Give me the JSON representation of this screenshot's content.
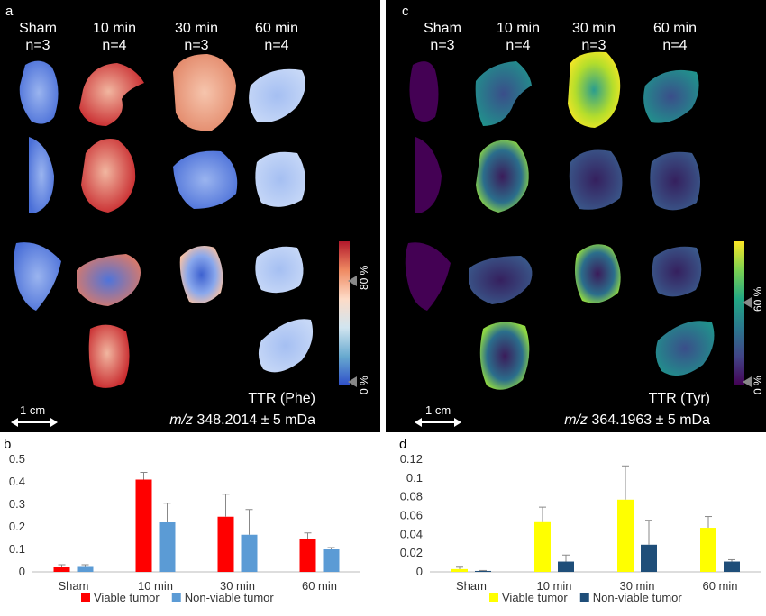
{
  "panel_a": {
    "label": "a",
    "columns": [
      {
        "name": "Sham",
        "n": "n=3"
      },
      {
        "name": "10 min",
        "n": "n=4"
      },
      {
        "name": "30 min",
        "n": "n=3"
      },
      {
        "name": "60 min",
        "n": "n=4"
      }
    ],
    "colorbar_ticks": [
      "80 %",
      "0 %"
    ],
    "scale_label": "1 cm",
    "ttr_label": "TTR (Phe)",
    "mz_prefix": "m/z",
    "mz_value": "348.2014 ± 5 mDa",
    "colorbar_colors": [
      "#b2182b",
      "#ef8a62",
      "#fddbc7",
      "#d1e5f0",
      "#67a9cf",
      "#2f4fc9"
    ]
  },
  "panel_c": {
    "label": "c",
    "columns": [
      {
        "name": "Sham",
        "n": "n=3"
      },
      {
        "name": "10 min",
        "n": "n=4"
      },
      {
        "name": "30 min",
        "n": "n=3"
      },
      {
        "name": "60 min",
        "n": "n=4"
      }
    ],
    "colorbar_ticks": [
      "60 %",
      "0 %"
    ],
    "scale_label": "1 cm",
    "ttr_label": "TTR (Tyr)",
    "mz_prefix": "m/z",
    "mz_value": "364.1963 ± 5 mDa",
    "colorbar_colors": [
      "#fde725",
      "#7ad151",
      "#22a884",
      "#2a788e",
      "#414487",
      "#440154"
    ]
  },
  "chart_data": [
    {
      "panel": "b",
      "type": "bar",
      "categories": [
        "Sham",
        "10 min",
        "30 min",
        "60 min"
      ],
      "series": [
        {
          "name": "Viable tumor",
          "color": "#ff0000",
          "values": [
            0.02,
            0.41,
            0.245,
            0.148
          ],
          "errors": [
            0.012,
            0.032,
            0.1,
            0.025
          ]
        },
        {
          "name": "Non-viable tumor",
          "color": "#5b9bd5",
          "values": [
            0.022,
            0.22,
            0.165,
            0.1
          ],
          "errors": [
            0.01,
            0.085,
            0.112,
            0.008
          ]
        }
      ],
      "yticks": [
        "0",
        "0.1",
        "0.2",
        "0.3",
        "0.4",
        "0.5"
      ],
      "ylim": [
        0,
        0.5
      ],
      "legend_position": "bottom"
    },
    {
      "panel": "d",
      "type": "bar",
      "categories": [
        "Sham",
        "10 min",
        "30 min",
        "60 min"
      ],
      "series": [
        {
          "name": "Viable tumor",
          "color": "#ffff00",
          "values": [
            0.003,
            0.053,
            0.077,
            0.047
          ],
          "errors": [
            0.002,
            0.016,
            0.036,
            0.012
          ]
        },
        {
          "name": "Non-viable tumor",
          "color": "#1f4e79",
          "values": [
            0.001,
            0.011,
            0.029,
            0.011
          ],
          "errors": [
            0.0005,
            0.007,
            0.026,
            0.002
          ]
        }
      ],
      "yticks": [
        "0",
        "0.02",
        "0.04",
        "0.06",
        "0.08",
        "0.1",
        "0.12"
      ],
      "ylim": [
        0,
        0.12
      ],
      "legend_position": "bottom"
    }
  ]
}
